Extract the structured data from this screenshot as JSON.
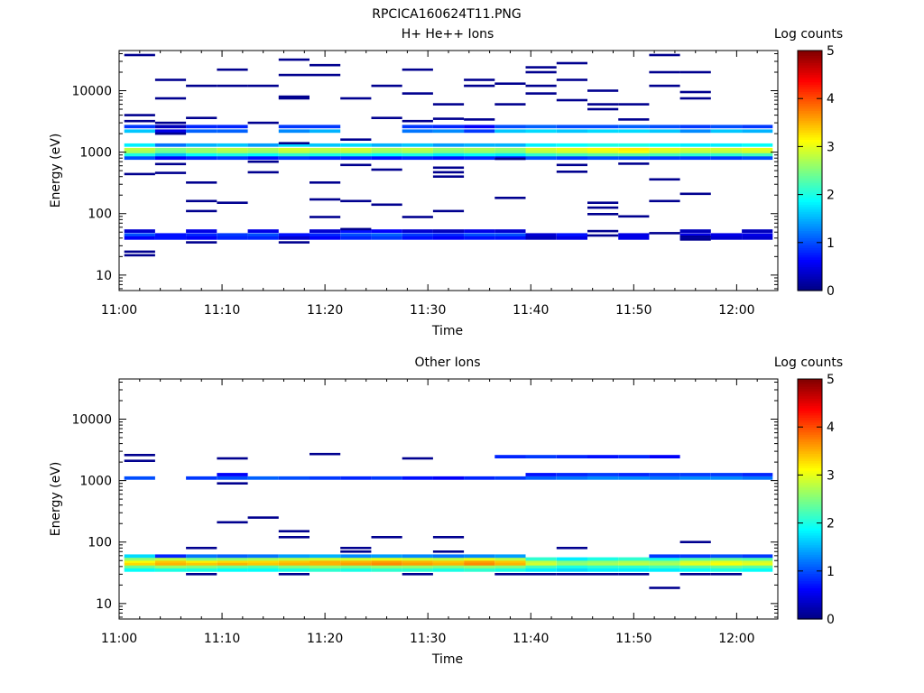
{
  "figure": {
    "title": "RPCICA160624T11.PNG"
  },
  "chart_data": [
    {
      "type": "heatmap",
      "title": "H+ He++ Ions",
      "xlabel": "Time",
      "ylabel": "Energy (eV)",
      "xticks": [
        "11:00",
        "11:10",
        "11:20",
        "11:30",
        "11:40",
        "11:50",
        "12:00"
      ],
      "yticks": [
        "10",
        "100",
        "1000",
        "10000"
      ],
      "yscale": "log",
      "ylim": [
        5.6,
        45000
      ],
      "xlim_minutes": [
        0,
        64
      ],
      "colorbar": {
        "label": "Log counts",
        "ticks": [
          "0",
          "1",
          "2",
          "3",
          "4",
          "5"
        ],
        "range": [
          0,
          5
        ]
      },
      "bins_minutes": [
        2,
        5,
        8,
        11,
        14,
        17,
        20,
        23,
        26,
        29,
        32,
        35,
        38,
        41,
        44,
        47,
        50,
        53,
        56,
        59,
        62
      ],
      "bands": [
        {
          "e": 1100,
          "v": [
            2.8,
            2.5,
            2.6,
            2.8,
            2.7,
            2.9,
            2.8,
            2.9,
            2.7,
            2.8,
            2.6,
            2.7,
            2.6,
            2.9,
            3.0,
            3.1,
            3.2,
            3.0,
            2.9,
            2.9,
            3.0
          ]
        },
        {
          "e": 1000,
          "v": [
            2.7,
            2.4,
            2.6,
            2.7,
            2.6,
            2.8,
            2.7,
            2.8,
            2.6,
            2.7,
            2.5,
            2.6,
            2.5,
            2.8,
            2.9,
            3.0,
            3.1,
            2.9,
            2.8,
            2.8,
            2.9
          ]
        },
        {
          "e": 900,
          "v": [
            2.0,
            1.6,
            1.9,
            2.0,
            1.9,
            2.1,
            2.0,
            2.0,
            1.9,
            2.0,
            1.8,
            1.9,
            1.8,
            2.1,
            2.2,
            2.3,
            2.3,
            2.2,
            2.1,
            2.1,
            2.2
          ]
        },
        {
          "e": 1300,
          "v": [
            1.8,
            1.2,
            1.5,
            1.6,
            1.4,
            1.7,
            1.6,
            1.7,
            1.5,
            1.6,
            1.4,
            1.5,
            1.5,
            1.8,
            1.9,
            2.0,
            2.0,
            1.9,
            1.8,
            1.8,
            1.9
          ]
        },
        {
          "e": 800,
          "v": [
            1.0,
            0.6,
            0.8,
            0.9,
            0.7,
            0.9,
            0.8,
            0.8,
            0.7,
            0.8,
            0.7,
            0.8,
            0.7,
            1.0,
            0.9,
            1.0,
            1.0,
            0.9,
            0.9,
            0.9,
            1.0
          ]
        },
        {
          "e": 2200,
          "v": [
            1.6,
            0.5,
            1.1,
            1.1,
            0.0,
            1.3,
            1.5,
            0.0,
            0.0,
            1.2,
            1.3,
            0.9,
            1.6,
            1.7,
            1.6,
            1.7,
            1.7,
            1.6,
            1.3,
            1.6,
            1.5
          ]
        },
        {
          "e": 2600,
          "v": [
            0.9,
            0.3,
            0.8,
            0.8,
            0.0,
            0.9,
            0.9,
            0.0,
            0.0,
            0.9,
            0.8,
            0.6,
            1.0,
            1.1,
            1.0,
            1.0,
            1.1,
            1.0,
            0.9,
            1.0,
            0.9
          ]
        },
        {
          "e": 45,
          "v": [
            1.0,
            0.7,
            0.8,
            0.9,
            1.0,
            0.7,
            0.8,
            1.0,
            1.1,
            0.9,
            0.8,
            1.0,
            1.0,
            0.4,
            0.7,
            0.0,
            0.5,
            0.0,
            0.5,
            0.5,
            0.5
          ]
        },
        {
          "e": 40,
          "v": [
            0.6,
            0.7,
            0.6,
            0.8,
            0.8,
            0.4,
            0.6,
            0.8,
            0.9,
            0.7,
            0.6,
            0.7,
            0.7,
            0.3,
            0.5,
            0.0,
            0.5,
            0.0,
            0.4,
            0.4,
            0.4
          ]
        },
        {
          "e": 52,
          "v": [
            0.4,
            0.0,
            0.5,
            0.0,
            0.5,
            0.0,
            0.4,
            0.7,
            0.6,
            0.4,
            0.3,
            0.5,
            0.4,
            0.0,
            0.0,
            0.0,
            0.0,
            0.0,
            0.3,
            0.0,
            0.3
          ]
        }
      ],
      "sparse": [
        [
          2,
          38000
        ],
        [
          2,
          4000
        ],
        [
          2,
          3200
        ],
        [
          2,
          440
        ],
        [
          2,
          24
        ],
        [
          2,
          21
        ],
        [
          5,
          15000
        ],
        [
          5,
          7500
        ],
        [
          5,
          3000
        ],
        [
          5,
          2000
        ],
        [
          5,
          640
        ],
        [
          5,
          460
        ],
        [
          8,
          12000
        ],
        [
          8,
          3600
        ],
        [
          8,
          320
        ],
        [
          8,
          160
        ],
        [
          8,
          110
        ],
        [
          8,
          34
        ],
        [
          11,
          22000
        ],
        [
          11,
          12000
        ],
        [
          11,
          150
        ],
        [
          14,
          12000
        ],
        [
          14,
          3000
        ],
        [
          14,
          700
        ],
        [
          14,
          470
        ],
        [
          17,
          32000
        ],
        [
          17,
          18000
        ],
        [
          17,
          8000
        ],
        [
          17,
          7500
        ],
        [
          17,
          1400
        ],
        [
          17,
          34
        ],
        [
          20,
          26000
        ],
        [
          20,
          18000
        ],
        [
          20,
          320
        ],
        [
          20,
          170
        ],
        [
          20,
          88
        ],
        [
          23,
          7500
        ],
        [
          23,
          1600
        ],
        [
          23,
          620
        ],
        [
          23,
          160
        ],
        [
          23,
          56
        ],
        [
          26,
          12000
        ],
        [
          26,
          3600
        ],
        [
          26,
          520
        ],
        [
          26,
          140
        ],
        [
          29,
          22000
        ],
        [
          29,
          9000
        ],
        [
          29,
          3200
        ],
        [
          29,
          88
        ],
        [
          32,
          6000
        ],
        [
          32,
          3500
        ],
        [
          32,
          560
        ],
        [
          32,
          470
        ],
        [
          32,
          400
        ],
        [
          32,
          110
        ],
        [
          35,
          15000
        ],
        [
          35,
          12000
        ],
        [
          35,
          3400
        ],
        [
          38,
          13000
        ],
        [
          38,
          6000
        ],
        [
          38,
          780
        ],
        [
          38,
          180
        ],
        [
          41,
          24000
        ],
        [
          41,
          20000
        ],
        [
          41,
          12000
        ],
        [
          41,
          9000
        ],
        [
          44,
          28000
        ],
        [
          44,
          15000
        ],
        [
          44,
          7000
        ],
        [
          44,
          620
        ],
        [
          44,
          480
        ],
        [
          47,
          10000
        ],
        [
          47,
          6000
        ],
        [
          47,
          5000
        ],
        [
          47,
          150
        ],
        [
          47,
          125
        ],
        [
          47,
          98
        ],
        [
          47,
          52
        ],
        [
          47,
          44
        ],
        [
          50,
          6000
        ],
        [
          50,
          3400
        ],
        [
          50,
          650
        ],
        [
          50,
          90
        ],
        [
          53,
          38000
        ],
        [
          53,
          20000
        ],
        [
          53,
          12000
        ],
        [
          53,
          360
        ],
        [
          53,
          160
        ],
        [
          53,
          48
        ],
        [
          56,
          20000
        ],
        [
          56,
          9500
        ],
        [
          56,
          7500
        ],
        [
          56,
          210
        ],
        [
          56,
          42
        ],
        [
          56,
          38
        ]
      ]
    },
    {
      "type": "heatmap",
      "title": "Other Ions",
      "xlabel": "Time",
      "ylabel": "Energy (eV)",
      "xticks": [
        "11:00",
        "11:10",
        "11:20",
        "11:30",
        "11:40",
        "11:50",
        "12:00"
      ],
      "yticks": [
        "10",
        "100",
        "1000",
        "10000"
      ],
      "yscale": "log",
      "ylim": [
        5.6,
        45000
      ],
      "xlim_minutes": [
        0,
        64
      ],
      "colorbar": {
        "label": "Log counts",
        "ticks": [
          "0",
          "1",
          "2",
          "3",
          "4",
          "5"
        ],
        "range": [
          0,
          5
        ]
      },
      "bins_minutes": [
        2,
        5,
        8,
        11,
        14,
        17,
        20,
        23,
        26,
        29,
        32,
        35,
        38,
        41,
        44,
        47,
        50,
        53,
        56,
        59,
        62
      ],
      "bands": [
        {
          "e": 48,
          "v": [
            3.1,
            3.4,
            3.2,
            3.3,
            3.3,
            3.4,
            3.5,
            3.5,
            3.6,
            3.5,
            3.4,
            3.6,
            3.4,
            2.8,
            2.5,
            2.6,
            2.7,
            2.6,
            2.9,
            3.0,
            2.9
          ]
        },
        {
          "e": 43,
          "v": [
            3.3,
            3.5,
            3.4,
            3.5,
            3.4,
            3.5,
            3.5,
            3.6,
            3.7,
            3.6,
            3.5,
            3.7,
            3.5,
            2.9,
            2.6,
            2.7,
            2.8,
            2.7,
            3.0,
            3.1,
            3.0
          ]
        },
        {
          "e": 53,
          "v": [
            2.6,
            2.8,
            2.5,
            2.6,
            2.7,
            2.8,
            2.9,
            2.9,
            3.0,
            2.9,
            2.8,
            3.0,
            2.8,
            2.1,
            1.8,
            2.0,
            2.1,
            2.0,
            2.3,
            2.4,
            2.3
          ]
        },
        {
          "e": 39,
          "v": [
            2.4,
            2.6,
            2.5,
            2.4,
            2.3,
            2.5,
            2.6,
            2.5,
            2.6,
            2.6,
            2.5,
            2.6,
            2.5,
            2.2,
            2.0,
            2.1,
            2.1,
            2.2,
            2.3,
            2.4,
            2.3
          ]
        },
        {
          "e": 35,
          "v": [
            1.9,
            2.0,
            2.0,
            1.9,
            1.9,
            2.0,
            2.1,
            2.0,
            2.1,
            2.1,
            2.0,
            2.1,
            2.0,
            1.8,
            1.7,
            1.8,
            1.8,
            1.8,
            1.9,
            2.0,
            1.9
          ]
        },
        {
          "e": 59,
          "v": [
            1.7,
            0.8,
            1.2,
            1.1,
            1.2,
            1.4,
            1.5,
            1.3,
            1.4,
            1.3,
            1.2,
            1.3,
            1.4,
            0.0,
            0.0,
            0.0,
            0.0,
            0.9,
            0.9,
            1.0,
            0.9
          ]
        },
        {
          "e": 1100,
          "v": [
            1.0,
            0.0,
            0.9,
            1.0,
            1.1,
            1.0,
            0.9,
            0.8,
            0.9,
            0.7,
            0.6,
            0.8,
            0.9,
            1.1,
            1.2,
            1.3,
            1.3,
            1.2,
            1.3,
            1.3,
            1.2
          ]
        },
        {
          "e": 1250,
          "v": [
            0.0,
            0.0,
            0.0,
            0.6,
            0.0,
            0.0,
            0.0,
            0.0,
            0.0,
            0.0,
            0.0,
            0.0,
            0.0,
            0.7,
            0.8,
            0.9,
            0.8,
            0.9,
            0.9,
            0.9,
            0.8
          ]
        },
        {
          "e": 2450,
          "v": [
            0.0,
            0.0,
            0.0,
            0.0,
            0.0,
            0.0,
            0.0,
            0.0,
            0.0,
            0.0,
            0.0,
            0.0,
            0.8,
            0.9,
            0.8,
            0.7,
            0.8,
            0.6,
            0.0,
            0.0,
            0.0
          ]
        }
      ],
      "sparse": [
        [
          2,
          2600
        ],
        [
          2,
          2100
        ],
        [
          8,
          80
        ],
        [
          8,
          30
        ],
        [
          11,
          2300
        ],
        [
          11,
          900
        ],
        [
          11,
          210
        ],
        [
          14,
          250
        ],
        [
          17,
          150
        ],
        [
          17,
          120
        ],
        [
          17,
          30
        ],
        [
          20,
          2700
        ],
        [
          23,
          80
        ],
        [
          23,
          70
        ],
        [
          26,
          120
        ],
        [
          29,
          2300
        ],
        [
          29,
          30
        ],
        [
          32,
          120
        ],
        [
          32,
          70
        ],
        [
          38,
          30
        ],
        [
          41,
          30
        ],
        [
          44,
          80
        ],
        [
          44,
          30
        ],
        [
          47,
          30
        ],
        [
          50,
          30
        ],
        [
          53,
          18
        ],
        [
          56,
          100
        ],
        [
          56,
          30
        ],
        [
          59,
          30
        ]
      ]
    }
  ]
}
